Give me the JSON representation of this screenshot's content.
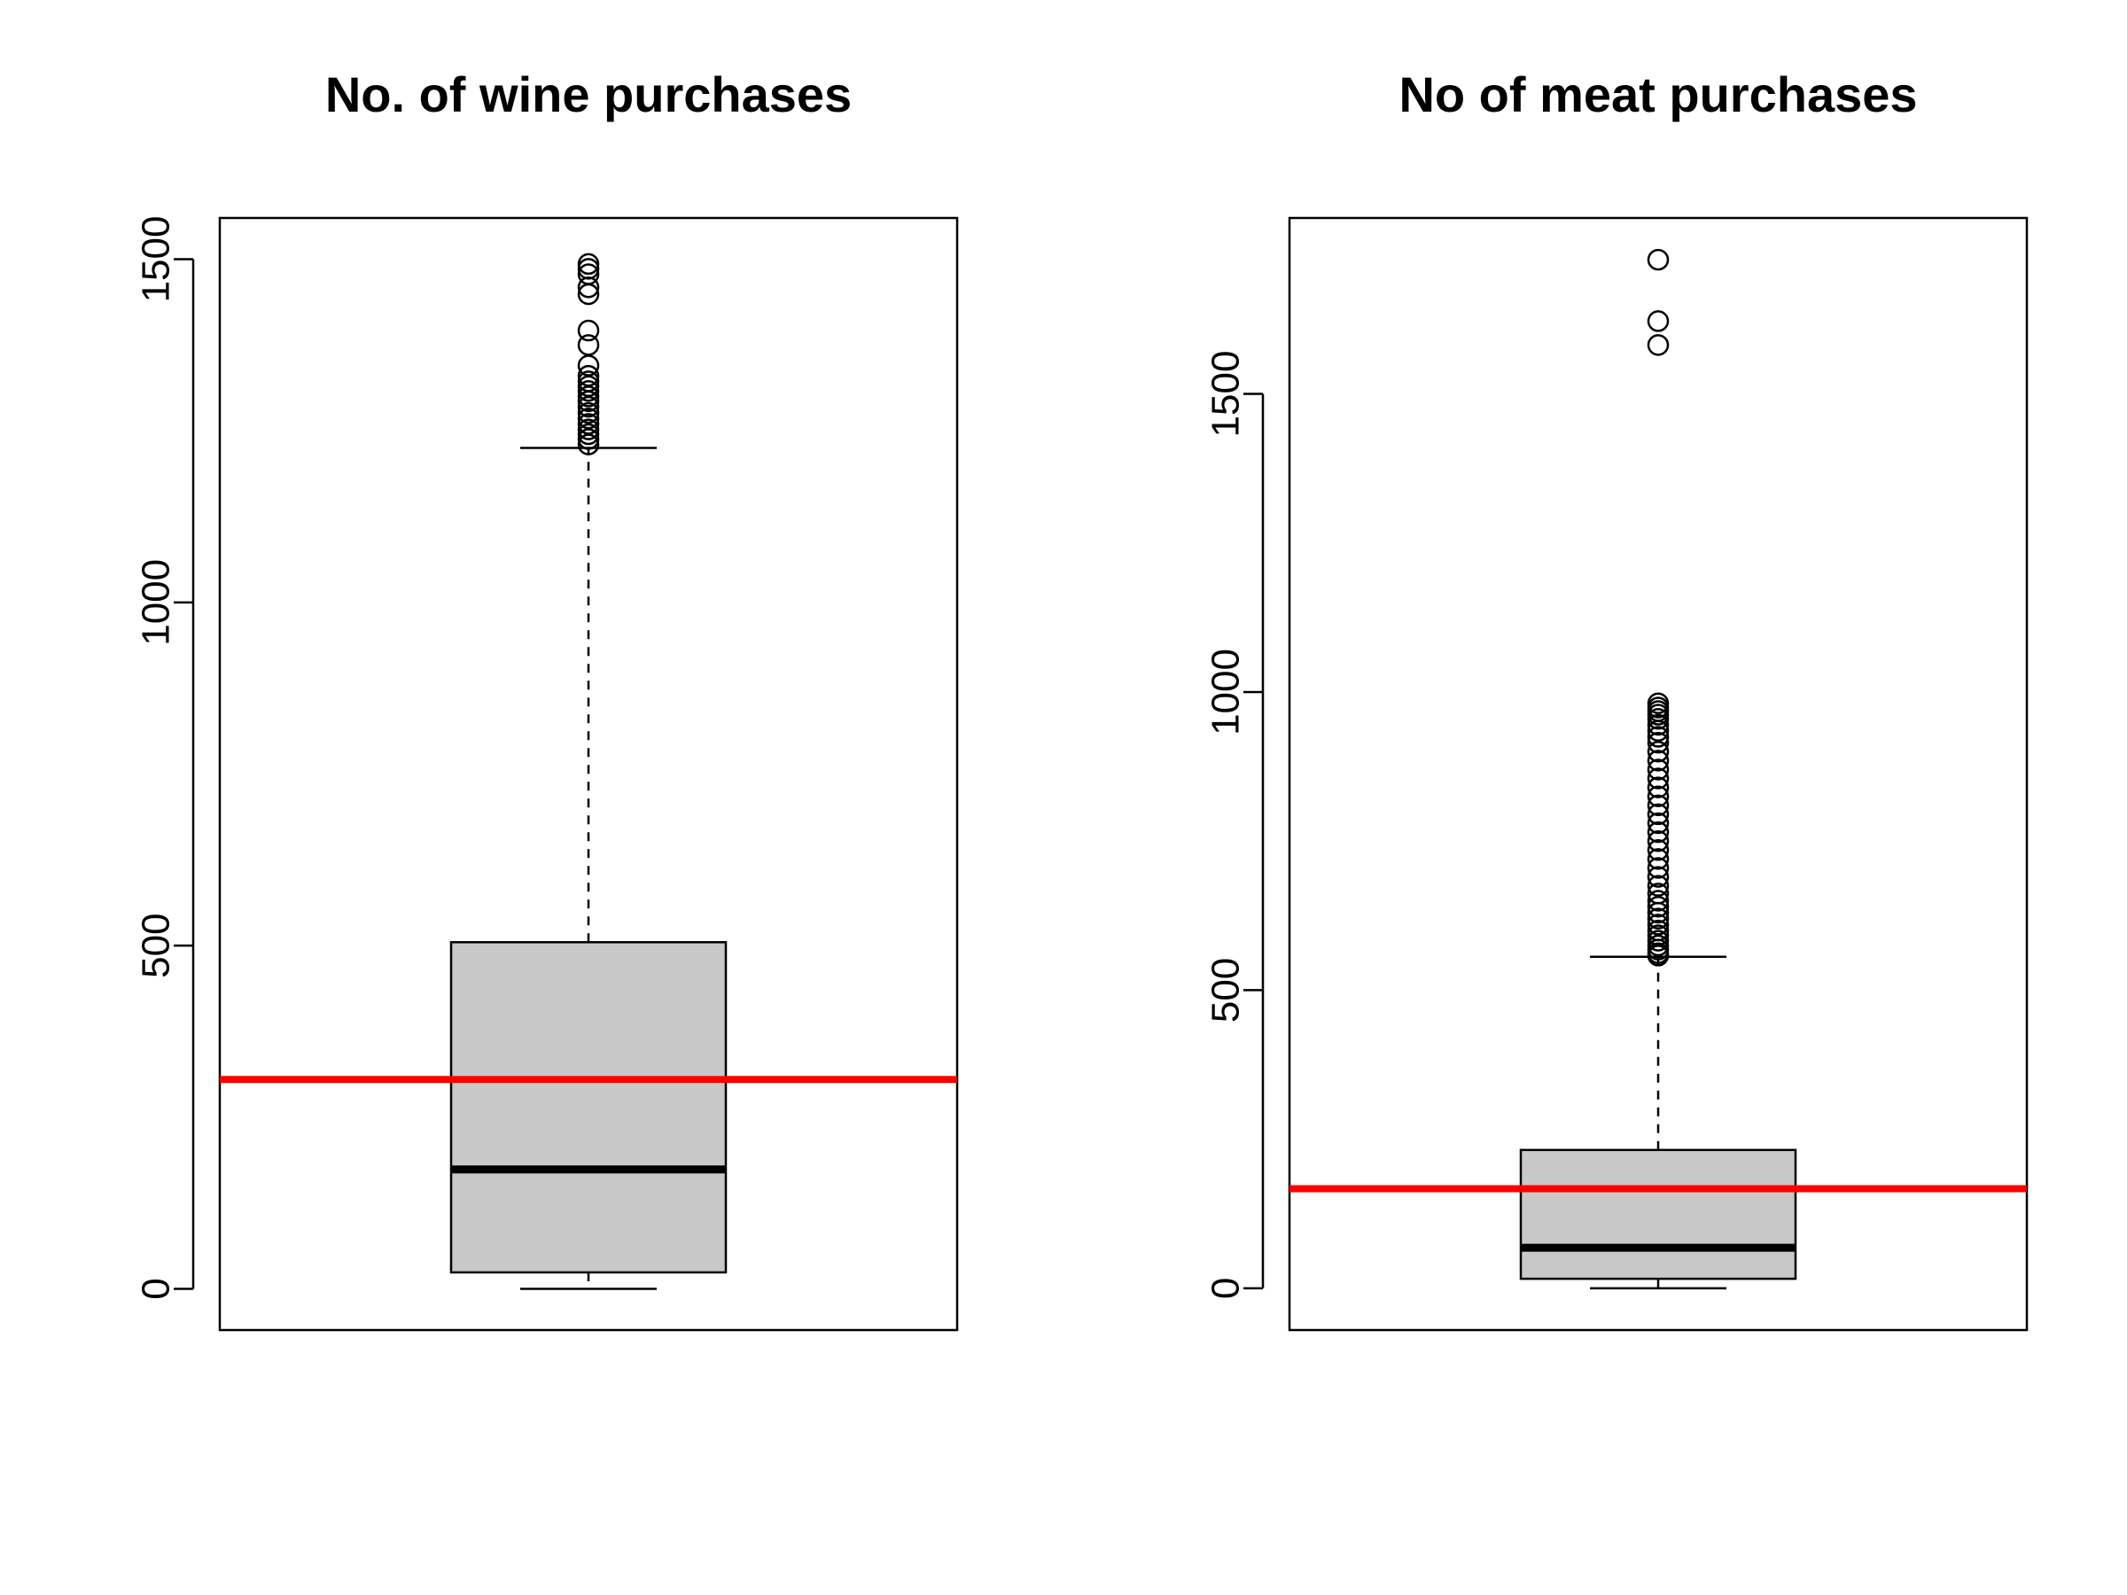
{
  "chart_data": [
    {
      "type": "box",
      "title": "No. of wine purchases",
      "ylim": [
        -60,
        1560
      ],
      "yticks": [
        0,
        500,
        1000,
        1500
      ],
      "box": {
        "min": 0,
        "q1": 24,
        "median": 174,
        "q3": 505,
        "whisker_high": 1225
      },
      "mean_line": {
        "value": 305,
        "color": "#ff0000"
      },
      "box_fill": "#c8c8c8",
      "outliers": [
        1230,
        1238,
        1245,
        1252,
        1260,
        1268,
        1276,
        1285,
        1293,
        1300,
        1308,
        1315,
        1322,
        1330,
        1345,
        1375,
        1396,
        1449,
        1459,
        1478,
        1486,
        1493
      ]
    },
    {
      "type": "box",
      "title": "No of meat purchases",
      "ylim": [
        -70,
        1795
      ],
      "yticks": [
        0,
        500,
        1000,
        1500
      ],
      "box": {
        "min": 0,
        "q1": 16,
        "median": 68,
        "q3": 232,
        "whisker_high": 556
      },
      "mean_line": {
        "value": 167,
        "color": "#ff0000"
      },
      "box_fill": "#c8c8c8",
      "outliers": [
        558,
        562,
        568,
        575,
        583,
        592,
        600,
        610,
        620,
        630,
        640,
        650,
        662,
        675,
        690,
        705,
        720,
        735,
        750,
        765,
        780,
        795,
        810,
        825,
        840,
        855,
        870,
        885,
        900,
        915,
        925,
        935,
        945,
        955,
        962,
        968,
        974,
        981,
        1582,
        1622,
        1725
      ]
    }
  ]
}
